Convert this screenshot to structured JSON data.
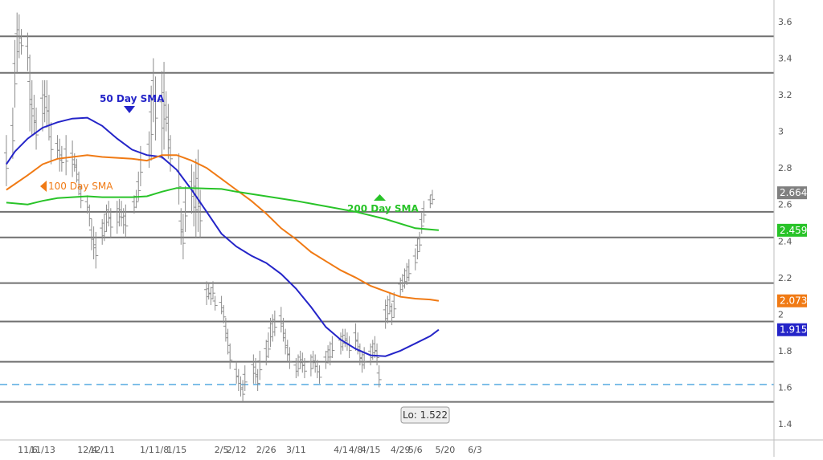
{
  "chart_data": {
    "type": "line",
    "title": "",
    "xlabel": "",
    "ylabel": "",
    "ylim": [
      1.3,
      3.72
    ],
    "y_ticks": [
      1.4,
      1.6,
      1.8,
      2,
      2.2,
      2.4,
      2.6,
      2.8,
      3,
      3.2,
      3.4,
      3.6
    ],
    "y_tick_labels": [
      "1.4",
      "1.6",
      "1.8",
      "2",
      "2.2",
      "2.4",
      "2.6",
      "2.8",
      "3",
      "3.2",
      "3.4",
      "3.6"
    ],
    "x_ticks": [
      {
        "label": "11/6",
        "date": "2023-11-06"
      },
      {
        "label": "11/13",
        "date": "2023-11-13"
      },
      {
        "label": "12/4",
        "date": "2023-12-04"
      },
      {
        "label": "12/11",
        "date": "2023-12-11"
      },
      {
        "label": "1/1",
        "date": "2024-01-01"
      },
      {
        "label": "1/8",
        "date": "2024-01-08"
      },
      {
        "label": "1/15",
        "date": "2024-01-15"
      },
      {
        "label": "2/5",
        "date": "2024-02-05"
      },
      {
        "label": "2/12",
        "date": "2024-02-12"
      },
      {
        "label": "2/26",
        "date": "2024-02-26"
      },
      {
        "label": "3/11",
        "date": "2024-03-11"
      },
      {
        "label": "4/1",
        "date": "2024-04-01"
      },
      {
        "label": "4/8",
        "date": "2024-04-08"
      },
      {
        "label": "4/15",
        "date": "2024-04-15"
      },
      {
        "label": "4/29",
        "date": "2024-04-29"
      },
      {
        "label": "5/6",
        "date": "2024-05-06"
      },
      {
        "label": "5/20",
        "date": "2024-05-20"
      },
      {
        "label": "6/3",
        "date": "2024-06-03"
      }
    ],
    "horizontal_lines": [
      3.52,
      3.32,
      2.56,
      2.42,
      2.17,
      1.96,
      1.74,
      1.52
    ],
    "dashed_line": 1.615,
    "series": [
      {
        "name": "50 Day SMA",
        "color": "#2424c8",
        "points": [
          [
            "2023-10-27",
            2.82
          ],
          [
            "2023-10-31",
            2.89
          ],
          [
            "2023-11-06",
            2.96
          ],
          [
            "2023-11-13",
            3.02
          ],
          [
            "2023-11-20",
            3.05
          ],
          [
            "2023-11-27",
            3.07
          ],
          [
            "2023-12-04",
            3.075
          ],
          [
            "2023-12-11",
            3.03
          ],
          [
            "2023-12-18",
            2.96
          ],
          [
            "2023-12-25",
            2.9
          ],
          [
            "2024-01-01",
            2.87
          ],
          [
            "2024-01-08",
            2.86
          ],
          [
            "2024-01-15",
            2.79
          ],
          [
            "2024-01-22",
            2.68
          ],
          [
            "2024-01-29",
            2.56
          ],
          [
            "2024-02-05",
            2.44
          ],
          [
            "2024-02-12",
            2.37
          ],
          [
            "2024-02-19",
            2.32
          ],
          [
            "2024-02-26",
            2.28
          ],
          [
            "2024-03-04",
            2.22
          ],
          [
            "2024-03-11",
            2.14
          ],
          [
            "2024-03-18",
            2.04
          ],
          [
            "2024-03-25",
            1.93
          ],
          [
            "2024-04-01",
            1.86
          ],
          [
            "2024-04-08",
            1.81
          ],
          [
            "2024-04-15",
            1.775
          ],
          [
            "2024-04-22",
            1.77
          ],
          [
            "2024-04-29",
            1.8
          ],
          [
            "2024-05-06",
            1.84
          ],
          [
            "2024-05-13",
            1.88
          ],
          [
            "2024-05-17",
            1.915
          ]
        ]
      },
      {
        "name": "100 Day SMA",
        "color": "#f07a14",
        "points": [
          [
            "2023-10-27",
            2.68
          ],
          [
            "2023-11-06",
            2.76
          ],
          [
            "2023-11-13",
            2.82
          ],
          [
            "2023-11-20",
            2.85
          ],
          [
            "2023-12-04",
            2.87
          ],
          [
            "2023-12-11",
            2.86
          ],
          [
            "2023-12-25",
            2.85
          ],
          [
            "2024-01-01",
            2.84
          ],
          [
            "2024-01-08",
            2.87
          ],
          [
            "2024-01-15",
            2.87
          ],
          [
            "2024-01-22",
            2.84
          ],
          [
            "2024-01-29",
            2.8
          ],
          [
            "2024-02-05",
            2.74
          ],
          [
            "2024-02-12",
            2.68
          ],
          [
            "2024-02-19",
            2.62
          ],
          [
            "2024-02-26",
            2.55
          ],
          [
            "2024-03-04",
            2.47
          ],
          [
            "2024-03-11",
            2.41
          ],
          [
            "2024-03-18",
            2.34
          ],
          [
            "2024-03-25",
            2.29
          ],
          [
            "2024-04-01",
            2.24
          ],
          [
            "2024-04-08",
            2.2
          ],
          [
            "2024-04-15",
            2.155
          ],
          [
            "2024-04-22",
            2.125
          ],
          [
            "2024-04-29",
            2.095
          ],
          [
            "2024-05-06",
            2.085
          ],
          [
            "2024-05-13",
            2.08
          ],
          [
            "2024-05-17",
            2.073
          ]
        ]
      },
      {
        "name": "200 Day SMA",
        "color": "#28c328",
        "points": [
          [
            "2023-10-27",
            2.61
          ],
          [
            "2023-11-06",
            2.6
          ],
          [
            "2023-11-13",
            2.62
          ],
          [
            "2023-11-20",
            2.635
          ],
          [
            "2023-12-04",
            2.645
          ],
          [
            "2023-12-11",
            2.64
          ],
          [
            "2023-12-25",
            2.64
          ],
          [
            "2024-01-01",
            2.645
          ],
          [
            "2024-01-08",
            2.67
          ],
          [
            "2024-01-15",
            2.69
          ],
          [
            "2024-01-22",
            2.69
          ],
          [
            "2024-02-05",
            2.685
          ],
          [
            "2024-02-12",
            2.67
          ],
          [
            "2024-02-26",
            2.645
          ],
          [
            "2024-03-11",
            2.62
          ],
          [
            "2024-03-25",
            2.59
          ],
          [
            "2024-04-08",
            2.56
          ],
          [
            "2024-04-22",
            2.52
          ],
          [
            "2024-05-06",
            2.47
          ],
          [
            "2024-05-17",
            2.459
          ]
        ]
      }
    ],
    "price_bars_color": "#8c8c8c",
    "price_bars": [
      [
        "2023-10-27",
        2.7,
        2.98
      ],
      [
        "2023-10-30",
        2.85,
        3.13
      ],
      [
        "2023-10-31",
        3.13,
        3.5
      ],
      [
        "2023-11-01",
        3.32,
        3.65
      ],
      [
        "2023-11-02",
        3.4,
        3.64
      ],
      [
        "2023-11-03",
        3.42,
        3.56
      ],
      [
        "2023-11-06",
        3.33,
        3.54
      ],
      [
        "2023-11-07",
        3.0,
        3.42
      ],
      [
        "2023-11-08",
        2.98,
        3.28
      ],
      [
        "2023-11-09",
        2.98,
        3.2
      ],
      [
        "2023-11-10",
        2.9,
        3.13
      ],
      [
        "2023-11-13",
        3.0,
        3.28
      ],
      [
        "2023-11-14",
        3.05,
        3.28
      ],
      [
        "2023-11-15",
        3.02,
        3.28
      ],
      [
        "2023-11-16",
        2.95,
        3.2
      ],
      [
        "2023-11-17",
        2.82,
        3.05
      ],
      [
        "2023-11-20",
        2.85,
        2.98
      ],
      [
        "2023-11-21",
        2.78,
        2.96
      ],
      [
        "2023-11-22",
        2.78,
        2.92
      ],
      [
        "2023-11-24",
        2.76,
        2.98
      ],
      [
        "2023-11-27",
        2.75,
        2.95
      ],
      [
        "2023-11-28",
        2.78,
        2.88
      ],
      [
        "2023-11-29",
        2.72,
        2.85
      ],
      [
        "2023-11-30",
        2.65,
        2.78
      ],
      [
        "2023-12-01",
        2.58,
        2.7
      ],
      [
        "2023-12-04",
        2.55,
        2.65
      ],
      [
        "2023-12-05",
        2.48,
        2.6
      ],
      [
        "2023-12-06",
        2.35,
        2.52
      ],
      [
        "2023-12-07",
        2.3,
        2.48
      ],
      [
        "2023-12-08",
        2.25,
        2.45
      ],
      [
        "2023-12-11",
        2.38,
        2.52
      ],
      [
        "2023-12-12",
        2.4,
        2.55
      ],
      [
        "2023-12-13",
        2.45,
        2.6
      ],
      [
        "2023-12-14",
        2.48,
        2.62
      ],
      [
        "2023-12-15",
        2.42,
        2.58
      ],
      [
        "2023-12-18",
        2.44,
        2.62
      ],
      [
        "2023-12-19",
        2.48,
        2.63
      ],
      [
        "2023-12-20",
        2.48,
        2.62
      ],
      [
        "2023-12-21",
        2.44,
        2.58
      ],
      [
        "2023-12-22",
        2.42,
        2.6
      ],
      [
        "2023-12-26",
        2.55,
        2.65
      ],
      [
        "2023-12-27",
        2.58,
        2.68
      ],
      [
        "2023-12-28",
        2.62,
        2.78
      ],
      [
        "2023-12-29",
        2.7,
        2.92
      ],
      [
        "2024-01-02",
        2.8,
        3.0
      ],
      [
        "2024-01-03",
        2.84,
        3.25
      ],
      [
        "2024-01-04",
        3.05,
        3.4
      ],
      [
        "2024-01-05",
        2.95,
        3.3
      ],
      [
        "2024-01-08",
        2.85,
        3.33
      ],
      [
        "2024-01-09",
        2.9,
        3.38
      ],
      [
        "2024-01-10",
        3.0,
        3.22
      ],
      [
        "2024-01-11",
        2.85,
        3.15
      ],
      [
        "2024-01-12",
        2.78,
        2.98
      ],
      [
        "2024-01-16",
        2.6,
        2.88
      ],
      [
        "2024-01-17",
        2.38,
        2.58
      ],
      [
        "2024-01-18",
        2.3,
        2.55
      ],
      [
        "2024-01-19",
        2.45,
        2.7
      ],
      [
        "2024-01-22",
        2.55,
        2.82
      ],
      [
        "2024-01-23",
        2.48,
        2.78
      ],
      [
        "2024-01-24",
        2.42,
        2.85
      ],
      [
        "2024-01-25",
        2.45,
        2.9
      ],
      [
        "2024-01-26",
        2.42,
        2.68
      ],
      [
        "2024-01-29",
        2.05,
        2.18
      ],
      [
        "2024-01-30",
        2.08,
        2.17
      ],
      [
        "2024-01-31",
        2.05,
        2.15
      ],
      [
        "2024-02-01",
        2.08,
        2.18
      ],
      [
        "2024-02-02",
        2.02,
        2.1
      ],
      [
        "2024-02-05",
        2.0,
        2.1
      ],
      [
        "2024-02-06",
        1.95,
        2.05
      ],
      [
        "2024-02-07",
        1.85,
        1.98
      ],
      [
        "2024-02-08",
        1.78,
        1.92
      ],
      [
        "2024-02-09",
        1.7,
        1.84
      ],
      [
        "2024-02-12",
        1.62,
        1.74
      ],
      [
        "2024-02-13",
        1.58,
        1.7
      ],
      [
        "2024-02-14",
        1.55,
        1.66
      ],
      [
        "2024-02-15",
        1.52,
        1.64
      ],
      [
        "2024-02-16",
        1.58,
        1.72
      ],
      [
        "2024-02-20",
        1.62,
        1.78
      ],
      [
        "2024-02-21",
        1.62,
        1.76
      ],
      [
        "2024-02-22",
        1.58,
        1.7
      ],
      [
        "2024-02-23",
        1.64,
        1.8
      ],
      [
        "2024-02-26",
        1.72,
        1.86
      ],
      [
        "2024-02-27",
        1.76,
        1.9
      ],
      [
        "2024-02-28",
        1.82,
        1.98
      ],
      [
        "2024-02-29",
        1.85,
        2.0
      ],
      [
        "2024-03-01",
        1.88,
        2.02
      ],
      [
        "2024-03-04",
        1.9,
        2.04
      ],
      [
        "2024-03-05",
        1.85,
        1.98
      ],
      [
        "2024-03-06",
        1.78,
        1.92
      ],
      [
        "2024-03-07",
        1.74,
        1.86
      ],
      [
        "2024-03-08",
        1.7,
        1.82
      ],
      [
        "2024-03-11",
        1.65,
        1.76
      ],
      [
        "2024-03-12",
        1.66,
        1.78
      ],
      [
        "2024-03-13",
        1.7,
        1.8
      ],
      [
        "2024-03-14",
        1.68,
        1.79
      ],
      [
        "2024-03-15",
        1.65,
        1.76
      ],
      [
        "2024-03-18",
        1.66,
        1.78
      ],
      [
        "2024-03-19",
        1.7,
        1.8
      ],
      [
        "2024-03-20",
        1.68,
        1.78
      ],
      [
        "2024-03-21",
        1.65,
        1.75
      ],
      [
        "2024-03-22",
        1.62,
        1.72
      ],
      [
        "2024-03-25",
        1.7,
        1.8
      ],
      [
        "2024-03-26",
        1.73,
        1.83
      ],
      [
        "2024-03-27",
        1.72,
        1.85
      ],
      [
        "2024-03-28",
        1.76,
        1.88
      ],
      [
        "2024-04-01",
        1.78,
        1.9
      ],
      [
        "2024-04-02",
        1.8,
        1.92
      ],
      [
        "2024-04-03",
        1.82,
        1.92
      ],
      [
        "2024-04-04",
        1.8,
        1.9
      ],
      [
        "2024-04-05",
        1.76,
        1.88
      ],
      [
        "2024-04-08",
        1.8,
        1.95
      ],
      [
        "2024-04-09",
        1.78,
        1.9
      ],
      [
        "2024-04-10",
        1.72,
        1.84
      ],
      [
        "2024-04-11",
        1.68,
        1.8
      ],
      [
        "2024-04-12",
        1.7,
        1.82
      ],
      [
        "2024-04-15",
        1.72,
        1.84
      ],
      [
        "2024-04-16",
        1.75,
        1.86
      ],
      [
        "2024-04-17",
        1.76,
        1.88
      ],
      [
        "2024-04-18",
        1.72,
        1.84
      ],
      [
        "2024-04-19",
        1.6,
        1.72
      ],
      [
        "2024-04-22",
        1.92,
        2.08
      ],
      [
        "2024-04-23",
        1.95,
        2.1
      ],
      [
        "2024-04-24",
        2.0,
        2.12
      ],
      [
        "2024-04-25",
        1.94,
        2.06
      ],
      [
        "2024-04-26",
        1.98,
        2.12
      ],
      [
        "2024-04-29",
        2.1,
        2.2
      ],
      [
        "2024-04-30",
        2.12,
        2.22
      ],
      [
        "2024-05-01",
        2.14,
        2.25
      ],
      [
        "2024-05-02",
        2.16,
        2.28
      ],
      [
        "2024-05-03",
        2.18,
        2.3
      ],
      [
        "2024-05-06",
        2.24,
        2.36
      ],
      [
        "2024-05-07",
        2.3,
        2.42
      ],
      [
        "2024-05-08",
        2.34,
        2.45
      ],
      [
        "2024-05-09",
        2.44,
        2.56
      ],
      [
        "2024-05-10",
        2.5,
        2.62
      ],
      [
        "2024-05-13",
        2.58,
        2.65
      ],
      [
        "2024-05-14",
        2.6,
        2.68
      ]
    ],
    "annotations": [
      {
        "text": "50 Day SMA",
        "color": "#2424c8",
        "marker": "down-triangle"
      },
      {
        "text": "100  Day SMA",
        "color": "#f07a14",
        "marker": "left-triangle"
      },
      {
        "text": "200 Day SMA",
        "color": "#28c328",
        "marker": "up-triangle"
      }
    ],
    "low_label": "Lo: 1.522",
    "value_tags": [
      {
        "text": "2.664",
        "value": 2.664,
        "bg": "#808080",
        "fg": "#ffffff"
      },
      {
        "text": "2.459",
        "value": 2.459,
        "bg": "#28c328",
        "fg": "#ffffff"
      },
      {
        "text": "2.073",
        "value": 2.073,
        "bg": "#f07a14",
        "fg": "#ffffff"
      },
      {
        "text": "1.915",
        "value": 1.915,
        "bg": "#2424c8",
        "fg": "#ffffff"
      }
    ],
    "grid": false
  }
}
